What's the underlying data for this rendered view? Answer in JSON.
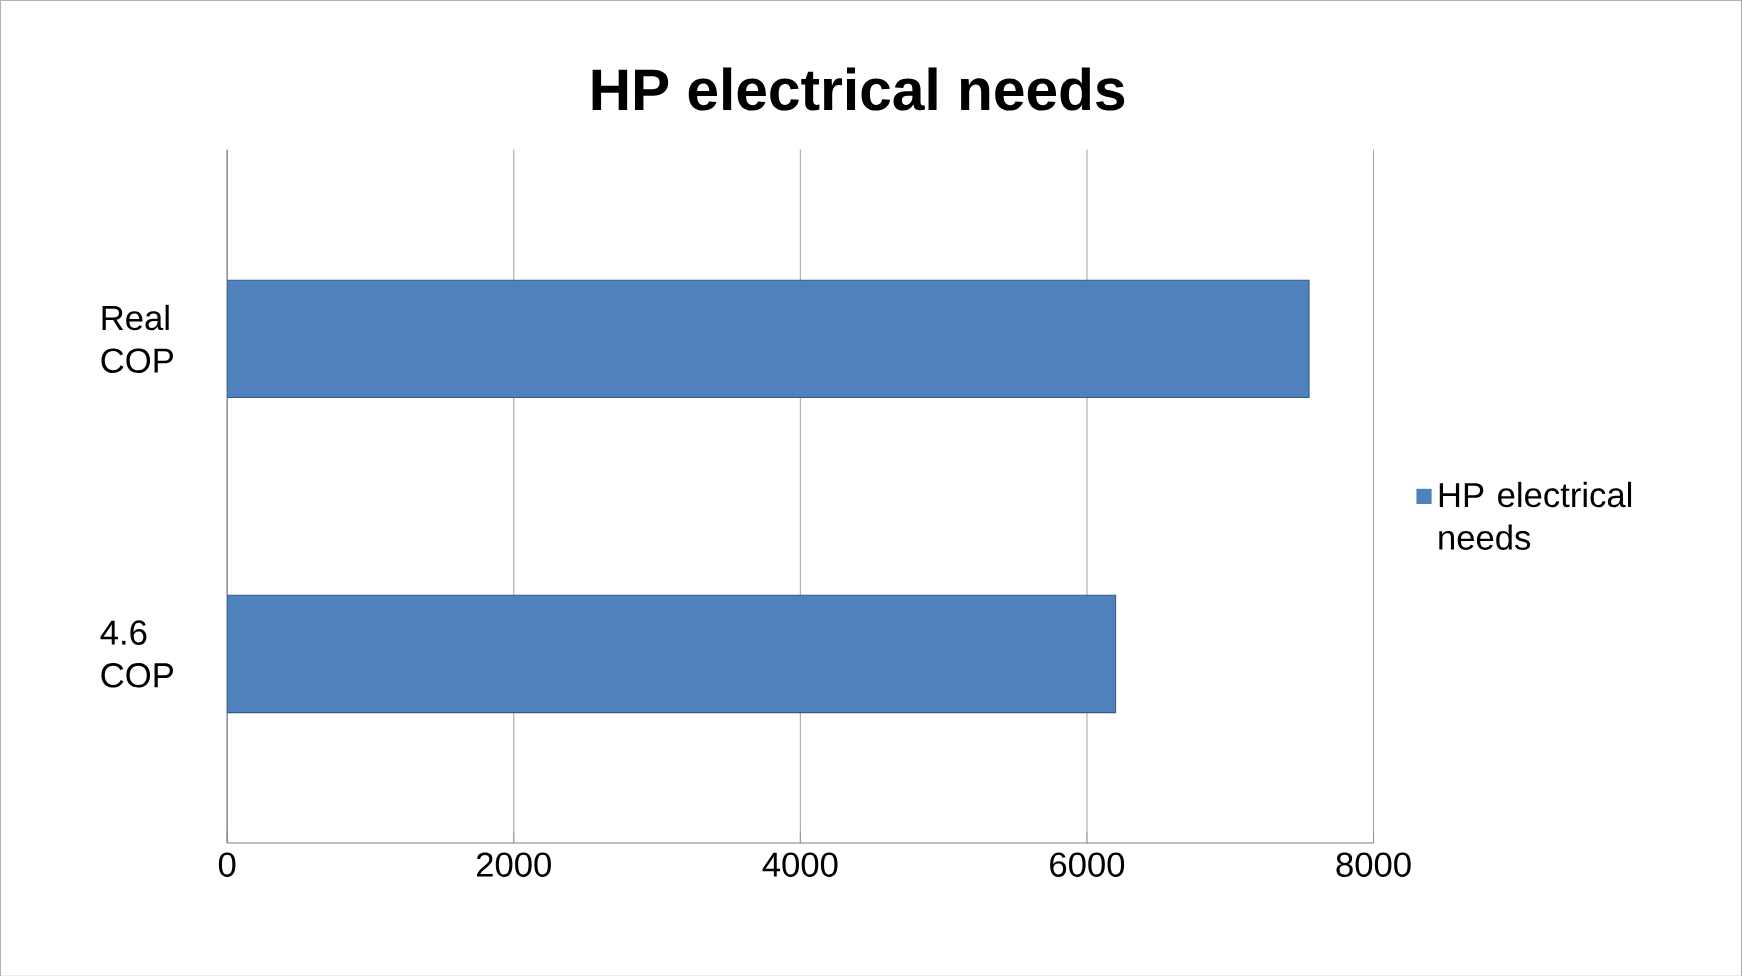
{
  "chart_data": {
    "type": "bar",
    "orientation": "horizontal",
    "title": "HP electrical needs",
    "categories": [
      "Real COP",
      "4.6 COP"
    ],
    "series": [
      {
        "name": "HP electrical needs",
        "color": "#4f81bd",
        "values": [
          7550,
          6200
        ]
      }
    ],
    "xlim": [
      0,
      8000
    ],
    "xticks": [
      0,
      2000,
      4000,
      6000,
      8000
    ],
    "grid": "x",
    "legend": "right"
  }
}
